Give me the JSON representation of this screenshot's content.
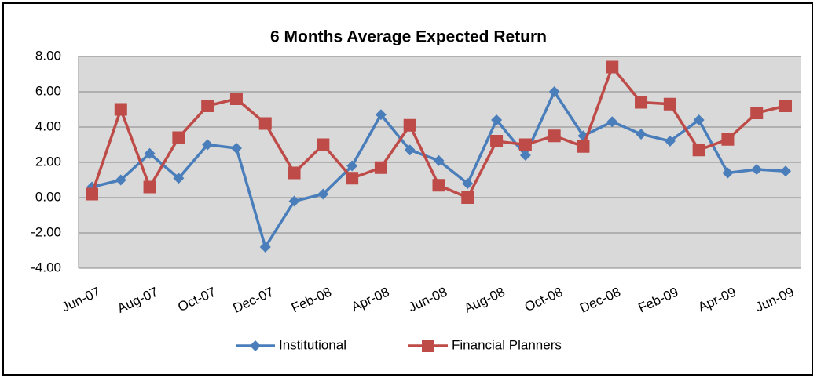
{
  "chart_data": {
    "type": "line",
    "title": "6 Months Average Expected Return",
    "categories": [
      "Jun-07",
      null,
      "Aug-07",
      null,
      "Oct-07",
      null,
      "Dec-07",
      null,
      "Feb-08",
      null,
      "Apr-08",
      null,
      "Jun-08",
      null,
      "Aug-08",
      null,
      "Oct-08",
      null,
      "Dec-08",
      null,
      "Feb-09",
      null,
      "Apr-09",
      null,
      "Jun-09"
    ],
    "series": [
      {
        "name": "Institutional",
        "color": "#4a7ebb",
        "marker": "diamond",
        "values": [
          0.6,
          1.0,
          2.5,
          1.1,
          3.0,
          2.8,
          -2.8,
          -0.2,
          0.2,
          1.8,
          4.7,
          2.7,
          2.1,
          0.8,
          4.4,
          2.4,
          6.0,
          3.5,
          4.3,
          3.6,
          3.2,
          4.4,
          1.4,
          1.6,
          1.5
        ]
      },
      {
        "name": "Financial Planners",
        "color": "#be4b48",
        "marker": "square",
        "values": [
          0.2,
          5.0,
          0.6,
          3.4,
          5.2,
          5.6,
          4.2,
          1.4,
          3.0,
          1.1,
          1.7,
          4.1,
          0.7,
          0.0,
          3.2,
          3.0,
          3.5,
          2.9,
          7.4,
          5.4,
          5.3,
          2.7,
          3.3,
          4.8,
          5.2
        ]
      }
    ],
    "ylim": [
      -4,
      8
    ],
    "yticks": [
      {
        "value": -4,
        "label": "-4.00"
      },
      {
        "value": -2,
        "label": "-2.00"
      },
      {
        "value": 0,
        "label": "0.00"
      },
      {
        "value": 2,
        "label": "2.00"
      },
      {
        "value": 4,
        "label": "4.00"
      },
      {
        "value": 6,
        "label": "6.00"
      },
      {
        "value": 8,
        "label": "8.00"
      }
    ],
    "grid": true,
    "legend": "bottom"
  }
}
